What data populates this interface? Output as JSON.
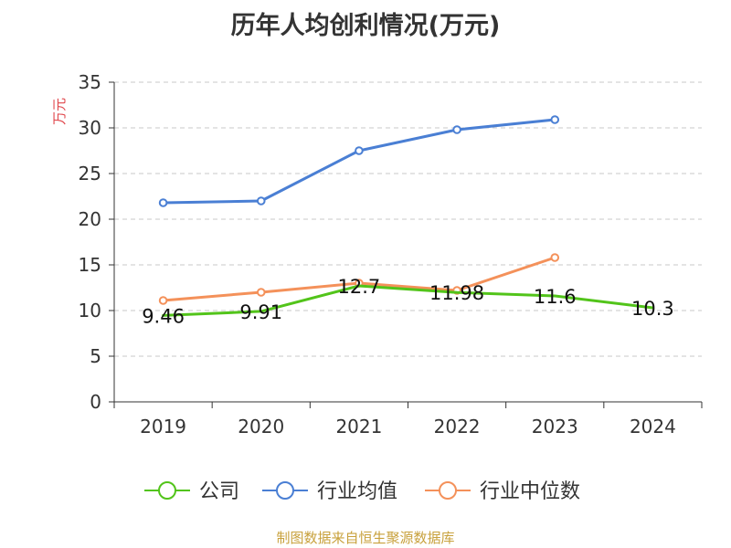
{
  "chart_data": {
    "type": "line",
    "title": "历年人均创利情况(万元)",
    "ylabel": "万元",
    "ylim": [
      0,
      35
    ],
    "yticks": [
      0,
      5,
      10,
      15,
      20,
      25,
      30,
      35
    ],
    "categories": [
      "2019",
      "2020",
      "2021",
      "2022",
      "2023",
      "2024"
    ],
    "grid": true,
    "legend_position": "bottom",
    "series": [
      {
        "name": "公司",
        "color": "#52c41a",
        "values": [
          9.46,
          9.91,
          12.7,
          11.98,
          11.6,
          10.3
        ],
        "labels": [
          "9.46",
          "9.91",
          "12.7",
          "11.98",
          "11.6",
          "10.3"
        ],
        "markers": false
      },
      {
        "name": "行业均值",
        "color": "#4a7fd4",
        "values": [
          21.8,
          22.0,
          27.5,
          29.8,
          30.9,
          null
        ],
        "markers": true
      },
      {
        "name": "行业中位数",
        "color": "#f4915a",
        "values": [
          11.1,
          12.0,
          13.0,
          12.2,
          15.8,
          null
        ],
        "markers": true
      }
    ]
  },
  "footer": {
    "source": "制图数据来自恒生聚源数据库"
  }
}
